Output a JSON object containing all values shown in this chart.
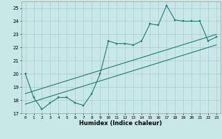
{
  "xlabel": "Humidex (Indice chaleur)",
  "bg_color": "#c8e8e8",
  "grid_color": "#aacccc",
  "line_color": "#1a7a6e",
  "xlim": [
    -0.5,
    23.5
  ],
  "ylim": [
    17,
    25.5
  ],
  "yticks": [
    17,
    18,
    19,
    20,
    21,
    22,
    23,
    24,
    25
  ],
  "xticks": [
    0,
    1,
    2,
    3,
    4,
    5,
    6,
    7,
    8,
    9,
    10,
    11,
    12,
    13,
    14,
    15,
    16,
    17,
    18,
    19,
    20,
    21,
    22,
    23
  ],
  "curve1_x": [
    0,
    1,
    2,
    3,
    4,
    5,
    6,
    7,
    8,
    9,
    10,
    11,
    12,
    13,
    14,
    15,
    16,
    17,
    18,
    19,
    20,
    21,
    22,
    23
  ],
  "curve1_y": [
    20.0,
    18.2,
    17.3,
    17.8,
    18.2,
    18.2,
    17.8,
    17.6,
    18.5,
    20.0,
    22.5,
    22.3,
    22.3,
    22.2,
    22.5,
    23.8,
    23.7,
    25.2,
    24.1,
    24.0,
    24.0,
    24.0,
    22.5,
    22.8
  ],
  "line1_x": [
    0,
    23
  ],
  "line1_y": [
    18.5,
    23.0
  ],
  "line2_x": [
    0,
    23
  ],
  "line2_y": [
    17.7,
    22.2
  ]
}
